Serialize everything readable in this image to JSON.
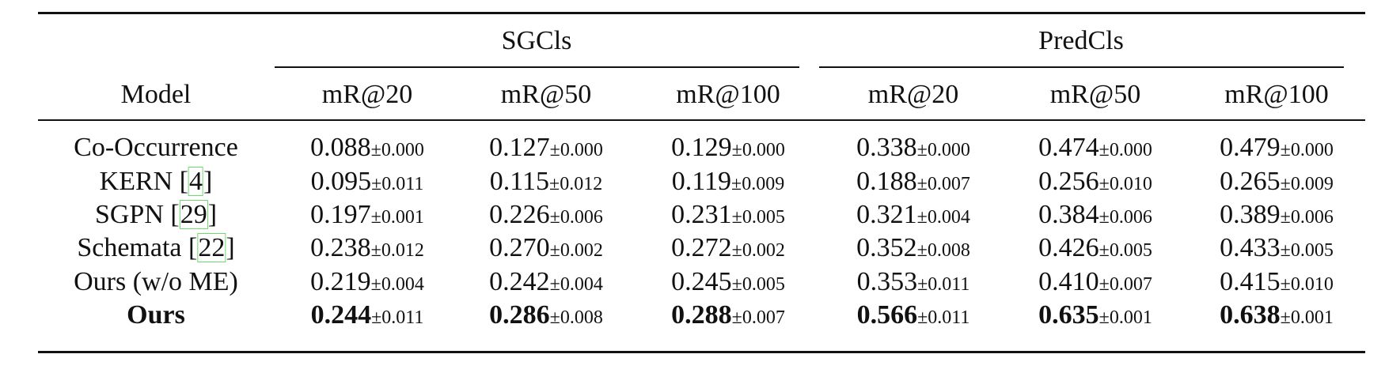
{
  "table": {
    "groups": [
      "SGCls",
      "PredCls"
    ],
    "header_model": "Model",
    "columns": [
      "mR@20",
      "mR@50",
      "mR@100",
      "mR@20",
      "mR@50",
      "mR@100"
    ],
    "rows": [
      {
        "model": "Co-Occurrence",
        "ref": "",
        "bold": false,
        "means": [
          "0.088",
          "0.127",
          "0.129",
          "0.338",
          "0.474",
          "0.479"
        ],
        "stds": [
          "±0.000",
          "±0.000",
          "±0.000",
          "±0.000",
          "±0.000",
          "±0.000"
        ]
      },
      {
        "model": "KERN ",
        "ref": "4",
        "bold": false,
        "means": [
          "0.095",
          "0.115",
          "0.119",
          "0.188",
          "0.256",
          "0.265"
        ],
        "stds": [
          "±0.011",
          "±0.012",
          "±0.009",
          "±0.007",
          "±0.010",
          "±0.009"
        ]
      },
      {
        "model": "SGPN ",
        "ref": "29",
        "bold": false,
        "means": [
          "0.197",
          "0.226",
          "0.231",
          "0.321",
          "0.384",
          "0.389"
        ],
        "stds": [
          "±0.001",
          "±0.006",
          "±0.005",
          "±0.004",
          "±0.006",
          "±0.006"
        ]
      },
      {
        "model": "Schemata ",
        "ref": "22",
        "bold": false,
        "means": [
          "0.238",
          "0.270",
          "0.272",
          "0.352",
          "0.426",
          "0.433"
        ],
        "stds": [
          "±0.012",
          "±0.002",
          "±0.002",
          "±0.008",
          "±0.005",
          "±0.005"
        ]
      },
      {
        "model": "Ours (w/o ME)",
        "ref": "",
        "bold": false,
        "means": [
          "0.219",
          "0.242",
          "0.245",
          "0.353",
          "0.410",
          "0.415"
        ],
        "stds": [
          "±0.004",
          "±0.004",
          "±0.005",
          "±0.011",
          "±0.007",
          "±0.010"
        ]
      },
      {
        "model": "Ours",
        "ref": "",
        "bold": true,
        "means": [
          "0.244",
          "0.286",
          "0.288",
          "0.566",
          "0.635",
          "0.638"
        ],
        "stds": [
          "±0.011",
          "±0.008",
          "±0.007",
          "±0.011",
          "±0.001",
          "±0.001"
        ]
      }
    ]
  }
}
